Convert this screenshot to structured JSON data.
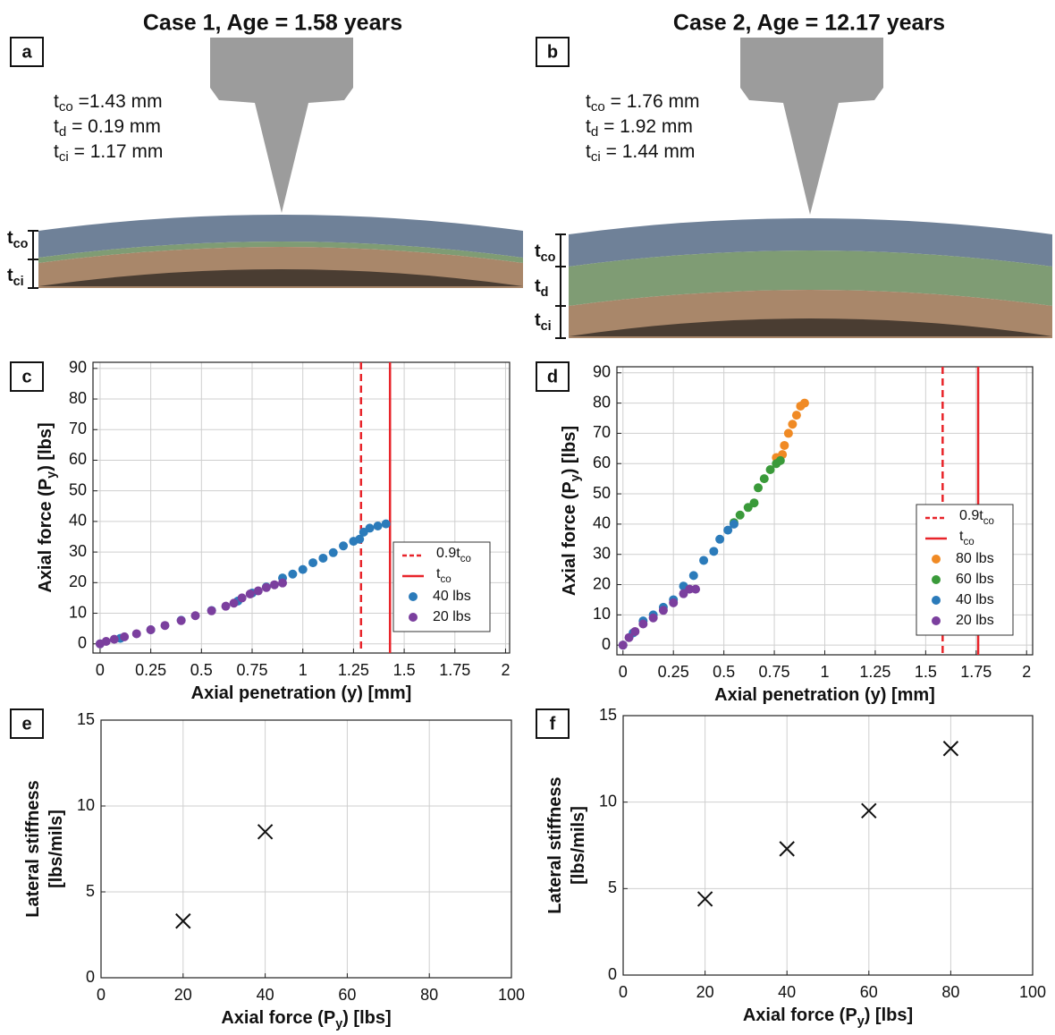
{
  "titles": [
    "Case 1, Age = 1.58 years",
    "Case 2, Age = 12.17 years"
  ],
  "panels": [
    "a",
    "b",
    "c",
    "d",
    "e",
    "f"
  ],
  "diagrams": [
    {
      "params": [
        [
          "t",
          "co",
          " =1.43 mm"
        ],
        [
          "t",
          "d",
          " = 0.19 mm"
        ],
        [
          "t",
          "ci",
          " = 1.17 mm"
        ]
      ],
      "layer_labels": [
        [
          "t",
          "co"
        ],
        [
          "t",
          "ci"
        ]
      ]
    },
    {
      "params": [
        [
          "t",
          "co",
          " = 1.76 mm"
        ],
        [
          "t",
          "d",
          " = 1.92 mm"
        ],
        [
          "t",
          "ci",
          " = 1.44 mm"
        ]
      ],
      "layer_labels": [
        [
          "t",
          "co"
        ],
        [
          "t",
          "d"
        ],
        [
          "t",
          "ci"
        ]
      ]
    }
  ],
  "chart_data": [
    {
      "type": "scatter",
      "marker": "circle",
      "xlabel": [
        "Axial penetration (y) [mm]"
      ],
      "ylabel": [
        "Axial force (P",
        "y",
        ") [lbs]"
      ],
      "xlim": [
        -0.035,
        2.02
      ],
      "ylim": [
        -3,
        92
      ],
      "xticks": [
        0,
        0.25,
        0.5,
        0.75,
        1,
        1.25,
        1.5,
        1.75,
        2
      ],
      "yticks": [
        0,
        10,
        20,
        30,
        40,
        50,
        60,
        70,
        80,
        90
      ],
      "grid": true,
      "legend": "lower right",
      "reference_lines": [
        {
          "label": [
            "0.9t",
            "co"
          ],
          "x": 1.287,
          "color": "#e8242a",
          "style": "dashed"
        },
        {
          "label": [
            "t",
            "co"
          ],
          "x": 1.43,
          "color": "#e8242a",
          "style": "solid"
        }
      ],
      "series": [
        {
          "name": "40 lbs",
          "color": "#2b7bba",
          "x": [
            0,
            0.1,
            0.25,
            0.4,
            0.55,
            0.68,
            0.75,
            0.82,
            0.9,
            0.95,
            1.0,
            1.05,
            1.1,
            1.15,
            1.2,
            1.25,
            1.28,
            1.3,
            1.33,
            1.37,
            1.41
          ],
          "values": [
            0,
            1.8,
            4.6,
            7.7,
            10.9,
            14,
            16.6,
            18.6,
            21.5,
            22.8,
            24.3,
            26.5,
            28,
            29.8,
            32,
            33.5,
            34.2,
            36.5,
            37.8,
            38.5,
            39.2
          ]
        },
        {
          "name": "20 lbs",
          "color": "#7b3f9e",
          "x": [
            0,
            0.03,
            0.07,
            0.12,
            0.18,
            0.25,
            0.32,
            0.4,
            0.47,
            0.55,
            0.62,
            0.66,
            0.7,
            0.74,
            0.78,
            0.82,
            0.86,
            0.9
          ],
          "values": [
            0,
            0.8,
            1.5,
            2.3,
            3.3,
            4.6,
            6,
            7.6,
            9.2,
            10.8,
            12.3,
            13.3,
            15,
            16.3,
            17.3,
            18.4,
            19.3,
            19.9
          ]
        }
      ]
    },
    {
      "type": "scatter",
      "marker": "circle",
      "xlabel": [
        "Axial penetration (y) [mm]"
      ],
      "ylabel": [
        "Axial force (P",
        "y",
        ") [lbs]"
      ],
      "xlim": [
        -0.03,
        2.03
      ],
      "ylim": [
        -3.2,
        92
      ],
      "xticks": [
        0,
        0.25,
        0.5,
        0.75,
        1,
        1.25,
        1.5,
        1.75,
        2
      ],
      "yticks": [
        0,
        10,
        20,
        30,
        40,
        50,
        60,
        70,
        80,
        90
      ],
      "grid": true,
      "legend": "center right",
      "reference_lines": [
        {
          "label": [
            "0.9t",
            "co"
          ],
          "x": 1.584,
          "color": "#e8242a",
          "style": "dashed"
        },
        {
          "label": [
            "t",
            "co"
          ],
          "x": 1.76,
          "color": "#e8242a",
          "style": "solid"
        }
      ],
      "series": [
        {
          "name": "80 lbs",
          "color": "#f08a24",
          "x": [
            0.76,
            0.79,
            0.8,
            0.82,
            0.84,
            0.86,
            0.88,
            0.9
          ],
          "values": [
            62,
            63,
            66,
            70,
            73,
            76,
            79,
            80
          ]
        },
        {
          "name": "60 lbs",
          "color": "#3a9a3a",
          "x": [
            0.55,
            0.58,
            0.62,
            0.65,
            0.67,
            0.7,
            0.73,
            0.76,
            0.78
          ],
          "values": [
            40.5,
            43,
            45.5,
            47,
            52,
            55,
            58,
            60,
            61
          ]
        },
        {
          "name": "40 lbs",
          "color": "#2b7bba",
          "x": [
            0,
            0.05,
            0.1,
            0.15,
            0.2,
            0.25,
            0.3,
            0.35,
            0.4,
            0.45,
            0.48,
            0.52,
            0.55
          ],
          "values": [
            0,
            4,
            8,
            10,
            12.5,
            15,
            19.5,
            23,
            28,
            31,
            35,
            38,
            40
          ]
        },
        {
          "name": "20 lbs",
          "color": "#7b3f9e",
          "x": [
            0,
            0.03,
            0.06,
            0.1,
            0.15,
            0.2,
            0.25,
            0.3,
            0.33,
            0.36
          ],
          "values": [
            0,
            2.5,
            4.5,
            7,
            9,
            11.5,
            14,
            17,
            18.5,
            18.5
          ]
        }
      ]
    },
    {
      "type": "scatter",
      "marker": "x",
      "xlabel": [
        "Axial force (P",
        "y",
        ") [lbs]"
      ],
      "ylabel_lines": [
        [
          "Lateral stiffness"
        ],
        [
          "[lbs/mils]"
        ]
      ],
      "xlim": [
        0,
        100
      ],
      "ylim": [
        0,
        15
      ],
      "xticks": [
        0,
        20,
        40,
        60,
        80,
        100
      ],
      "yticks": [
        0,
        5,
        10,
        15
      ],
      "grid": true,
      "series": [
        {
          "color": "#111111",
          "x": [
            20,
            40
          ],
          "values": [
            3.3,
            8.5
          ]
        }
      ]
    },
    {
      "type": "scatter",
      "marker": "x",
      "xlabel": [
        "Axial force (P",
        "y",
        ") [lbs]"
      ],
      "ylabel_lines": [
        [
          "Lateral stiffness"
        ],
        [
          "[lbs/mils]"
        ]
      ],
      "xlim": [
        0,
        100
      ],
      "ylim": [
        0,
        15
      ],
      "xticks": [
        0,
        20,
        40,
        60,
        80,
        100
      ],
      "yticks": [
        0,
        5,
        10,
        15
      ],
      "grid": true,
      "series": [
        {
          "color": "#111111",
          "x": [
            20,
            40,
            60,
            80
          ],
          "values": [
            4.4,
            7.3,
            9.5,
            13.1
          ]
        }
      ]
    }
  ]
}
